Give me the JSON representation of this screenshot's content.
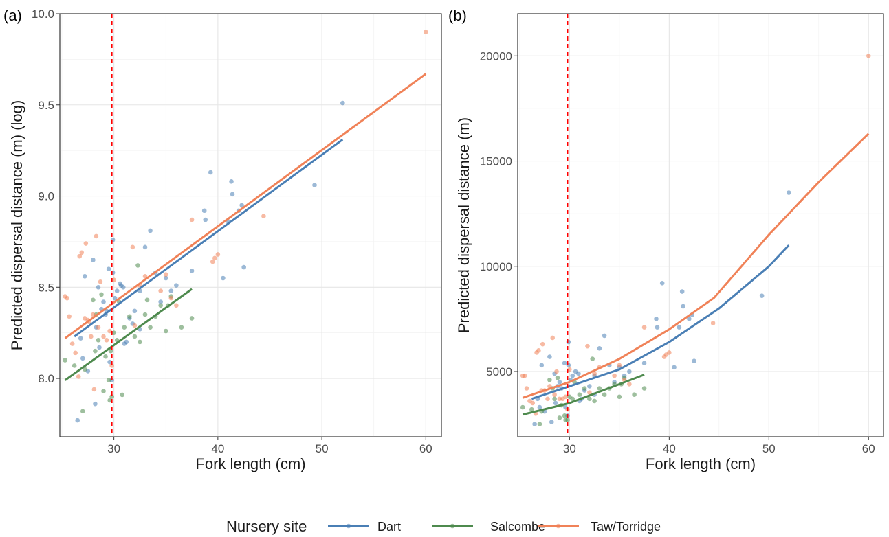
{
  "colors": {
    "Dart": "#4a7fb5",
    "Salcombe": "#4e8a4e",
    "Taw/Torridge": "#f08258",
    "reference_line": "#ff0000"
  },
  "legend": {
    "title": "Nursery site",
    "entries": [
      "Dart",
      "Salcombe",
      "Taw/Torridge"
    ]
  },
  "chart_data": [
    {
      "panel": "(a)",
      "type": "scatter",
      "xlabel": "Fork length (cm)",
      "ylabel": "Predicted dispersal distance (m) (log)",
      "xlim": [
        24.8,
        61.5
      ],
      "ylim": [
        7.68,
        10.0
      ],
      "x_ticks": [
        30,
        40,
        50,
        60
      ],
      "y_ticks": [
        8.0,
        8.5,
        9.0,
        9.5,
        10.0
      ],
      "y_tick_labels": [
        "8.0",
        "8.5",
        "9.0",
        "9.5",
        "10.0"
      ],
      "reference_x": 29.8,
      "grid": true,
      "series": [
        {
          "name": "Dart",
          "points": [
            [
              26.5,
              7.77
            ],
            [
              27,
              8.11
            ],
            [
              27.5,
              8.04
            ],
            [
              26.8,
              8.22
            ],
            [
              27.2,
              8.56
            ],
            [
              28,
              8.65
            ],
            [
              28.2,
              7.86
            ],
            [
              28.5,
              8.5
            ],
            [
              28.6,
              8.17
            ],
            [
              28.8,
              8.38
            ],
            [
              29,
              8.42
            ],
            [
              29.2,
              8.35
            ],
            [
              29.5,
              8.6
            ],
            [
              29.6,
              8.09
            ],
            [
              29.8,
              7.99
            ],
            [
              29.9,
              8.58
            ],
            [
              29.9,
              8.76
            ],
            [
              30.1,
              8.44
            ],
            [
              30.3,
              8.48
            ],
            [
              30.6,
              8.52
            ],
            [
              30.9,
              8.5
            ],
            [
              31,
              8.19
            ],
            [
              31.2,
              8.2
            ],
            [
              31.5,
              8.33
            ],
            [
              32,
              8.37
            ],
            [
              32.5,
              8.48
            ],
            [
              32.5,
              8.27
            ],
            [
              33,
              8.72
            ],
            [
              33.5,
              8.81
            ],
            [
              34,
              8.58
            ],
            [
              34.5,
              8.42
            ],
            [
              35,
              8.55
            ],
            [
              35.5,
              8.48
            ],
            [
              36,
              8.51
            ],
            [
              37.5,
              8.59
            ],
            [
              38.7,
              8.92
            ],
            [
              38.8,
              8.87
            ],
            [
              39.3,
              9.13
            ],
            [
              40.5,
              8.55
            ],
            [
              41,
              8.86
            ],
            [
              41.3,
              9.08
            ],
            [
              41.4,
              9.01
            ],
            [
              42,
              8.92
            ],
            [
              42.3,
              8.95
            ],
            [
              42.5,
              8.61
            ],
            [
              49.3,
              9.06
            ],
            [
              52,
              9.51
            ],
            [
              30.7,
              8.51
            ],
            [
              28.3,
              8.28
            ],
            [
              29.3,
              8.37
            ],
            [
              31.8,
              8.3
            ]
          ],
          "line": [
            [
              26.2,
              8.23
            ],
            [
              52,
              9.31
            ]
          ]
        },
        {
          "name": "Salcombe",
          "points": [
            [
              25.3,
              8.1
            ],
            [
              26.2,
              8.07
            ],
            [
              27,
              7.82
            ],
            [
              27.2,
              8.05
            ],
            [
              28,
              8.43
            ],
            [
              28.3,
              8.35
            ],
            [
              28.5,
              8.21
            ],
            [
              28.8,
              8.46
            ],
            [
              29,
              7.93
            ],
            [
              29.2,
              8.12
            ],
            [
              29.5,
              7.99
            ],
            [
              29.6,
              7.88
            ],
            [
              29.8,
              7.9
            ],
            [
              30,
              8.25
            ],
            [
              30.3,
              8.21
            ],
            [
              30.5,
              8.42
            ],
            [
              31,
              8.28
            ],
            [
              31.5,
              8.34
            ],
            [
              32,
              8.23
            ],
            [
              32.3,
              8.62
            ],
            [
              32.5,
              8.2
            ],
            [
              33,
              8.35
            ],
            [
              33.5,
              8.28
            ],
            [
              34,
              8.34
            ],
            [
              34.5,
              8.4
            ],
            [
              35,
              8.26
            ],
            [
              35.2,
              8.4
            ],
            [
              35.5,
              8.45
            ],
            [
              36.5,
              8.28
            ],
            [
              37.5,
              8.33
            ],
            [
              29.7,
              8.15
            ],
            [
              30.8,
              7.91
            ],
            [
              28.2,
              8.15
            ],
            [
              33.2,
              8.43
            ]
          ],
          "line": [
            [
              25.3,
              7.99
            ],
            [
              37.5,
              8.49
            ]
          ]
        },
        {
          "name": "Taw/Torridge",
          "points": [
            [
              25.3,
              8.45
            ],
            [
              25.5,
              8.44
            ],
            [
              25.7,
              8.34
            ],
            [
              26,
              8.19
            ],
            [
              26.3,
              8.14
            ],
            [
              26.6,
              8.01
            ],
            [
              26.7,
              8.67
            ],
            [
              26.9,
              8.69
            ],
            [
              27.2,
              8.33
            ],
            [
              27.3,
              8.74
            ],
            [
              27.5,
              8.32
            ],
            [
              27.8,
              8.23
            ],
            [
              28,
              8.35
            ],
            [
              28.3,
              8.78
            ],
            [
              28.5,
              8.28
            ],
            [
              28.7,
              8.53
            ],
            [
              29,
              8.23
            ],
            [
              29.3,
              8.21
            ],
            [
              29.6,
              8.26
            ],
            [
              29.8,
              8.07
            ],
            [
              30,
              8.54
            ],
            [
              31.8,
              8.72
            ],
            [
              32,
              8.29
            ],
            [
              32.5,
              8.51
            ],
            [
              33,
              8.56
            ],
            [
              34.5,
              8.48
            ],
            [
              35,
              8.57
            ],
            [
              35.5,
              8.44
            ],
            [
              36,
              8.4
            ],
            [
              37.5,
              8.87
            ],
            [
              39.5,
              8.64
            ],
            [
              39.7,
              8.66
            ],
            [
              40,
              8.68
            ],
            [
              44.4,
              8.89
            ],
            [
              60,
              9.9
            ],
            [
              27.6,
              8.31
            ],
            [
              28.1,
              7.94
            ]
          ],
          "line": [
            [
              25.3,
              8.22
            ],
            [
              60,
              9.67
            ]
          ]
        }
      ]
    },
    {
      "panel": "(b)",
      "type": "scatter",
      "xlabel": "Fork length (cm)",
      "ylabel": "Predicted dispersal distance (m)",
      "xlim": [
        24.8,
        61.5
      ],
      "ylim": [
        1900,
        22000
      ],
      "x_ticks": [
        30,
        40,
        50,
        60
      ],
      "y_ticks": [
        5000,
        10000,
        15000,
        20000
      ],
      "y_tick_labels": [
        "5000",
        "10000",
        "15000",
        "20000"
      ],
      "reference_x": 29.8,
      "grid": true,
      "series": [
        {
          "name": "Dart",
          "points": [
            [
              26.5,
              2500
            ],
            [
              27,
              3300
            ],
            [
              27.5,
              3100
            ],
            [
              26.8,
              3700
            ],
            [
              27.2,
              5300
            ],
            [
              28,
              5700
            ],
            [
              28.2,
              2600
            ],
            [
              28.5,
              4900
            ],
            [
              28.6,
              3500
            ],
            [
              28.8,
              4300
            ],
            [
              29,
              4500
            ],
            [
              29.2,
              4200
            ],
            [
              29.5,
              5400
            ],
            [
              29.6,
              3300
            ],
            [
              29.8,
              2900
            ],
            [
              29.9,
              5300
            ],
            [
              29.9,
              6400
            ],
            [
              30.1,
              4600
            ],
            [
              30.3,
              4800
            ],
            [
              30.6,
              5000
            ],
            [
              30.9,
              4900
            ],
            [
              31,
              3600
            ],
            [
              31.2,
              3700
            ],
            [
              31.5,
              4100
            ],
            [
              32,
              4300
            ],
            [
              32.5,
              4800
            ],
            [
              32.5,
              3900
            ],
            [
              33,
              6100
            ],
            [
              33.5,
              6700
            ],
            [
              34,
              5300
            ],
            [
              34.5,
              4500
            ],
            [
              35,
              5200
            ],
            [
              35.5,
              4800
            ],
            [
              36,
              5000
            ],
            [
              37.5,
              5400
            ],
            [
              38.7,
              7500
            ],
            [
              38.8,
              7100
            ],
            [
              39.3,
              9200
            ],
            [
              40.5,
              5200
            ],
            [
              41,
              7100
            ],
            [
              41.3,
              8800
            ],
            [
              41.4,
              8100
            ],
            [
              42,
              7500
            ],
            [
              42.3,
              7700
            ],
            [
              42.5,
              5500
            ],
            [
              49.3,
              8600
            ],
            [
              52,
              13500
            ]
          ],
          "line": [
            [
              26.2,
              3700
            ],
            [
              30,
              4300
            ],
            [
              35,
              5100
            ],
            [
              40,
              6400
            ],
            [
              45,
              8000
            ],
            [
              50,
              10000
            ],
            [
              52,
              11000
            ]
          ]
        },
        {
          "name": "Salcombe",
          "points": [
            [
              25.3,
              3300
            ],
            [
              26.2,
              3200
            ],
            [
              27,
              2500
            ],
            [
              27.2,
              3100
            ],
            [
              28,
              4600
            ],
            [
              28.3,
              4200
            ],
            [
              28.5,
              3700
            ],
            [
              28.8,
              4700
            ],
            [
              29,
              2800
            ],
            [
              29.2,
              3400
            ],
            [
              29.5,
              2900
            ],
            [
              29.6,
              2700
            ],
            [
              29.8,
              2700
            ],
            [
              30,
              3800
            ],
            [
              30.3,
              3700
            ],
            [
              30.5,
              4500
            ],
            [
              31,
              3900
            ],
            [
              31.5,
              4200
            ],
            [
              32,
              3700
            ],
            [
              32.3,
              5600
            ],
            [
              32.5,
              3600
            ],
            [
              33,
              4200
            ],
            [
              33.5,
              3900
            ],
            [
              34,
              4200
            ],
            [
              34.5,
              4400
            ],
            [
              35,
              3800
            ],
            [
              35.2,
              4400
            ],
            [
              35.5,
              4700
            ],
            [
              36.5,
              3900
            ],
            [
              37.5,
              4200
            ]
          ],
          "line": [
            [
              25.3,
              2950
            ],
            [
              30,
              3500
            ],
            [
              37.5,
              4850
            ]
          ]
        },
        {
          "name": "Taw/Torridge",
          "points": [
            [
              25.3,
              4800
            ],
            [
              25.5,
              4800
            ],
            [
              25.7,
              4200
            ],
            [
              26,
              3600
            ],
            [
              26.3,
              3500
            ],
            [
              26.6,
              3000
            ],
            [
              26.7,
              5900
            ],
            [
              26.9,
              6000
            ],
            [
              27.2,
              4100
            ],
            [
              27.3,
              6300
            ],
            [
              27.5,
              4100
            ],
            [
              27.8,
              3700
            ],
            [
              28,
              4300
            ],
            [
              28.3,
              6600
            ],
            [
              28.5,
              3900
            ],
            [
              28.7,
              5000
            ],
            [
              29,
              3700
            ],
            [
              29.3,
              3700
            ],
            [
              29.6,
              3800
            ],
            [
              29.8,
              3200
            ],
            [
              30,
              5100
            ],
            [
              31.8,
              6200
            ],
            [
              32,
              4000
            ],
            [
              32.5,
              4900
            ],
            [
              33,
              5200
            ],
            [
              34.5,
              4800
            ],
            [
              35,
              5300
            ],
            [
              35.5,
              4600
            ],
            [
              36,
              4400
            ],
            [
              37.5,
              7100
            ],
            [
              39.5,
              5700
            ],
            [
              39.7,
              5800
            ],
            [
              40,
              5900
            ],
            [
              44.4,
              7300
            ],
            [
              60,
              20000
            ]
          ],
          "line": [
            [
              25.3,
              3750
            ],
            [
              30,
              4500
            ],
            [
              35,
              5600
            ],
            [
              40,
              7000
            ],
            [
              44.5,
              8500
            ],
            [
              50,
              11500
            ],
            [
              55,
              14000
            ],
            [
              60,
              16300
            ]
          ]
        }
      ]
    }
  ]
}
